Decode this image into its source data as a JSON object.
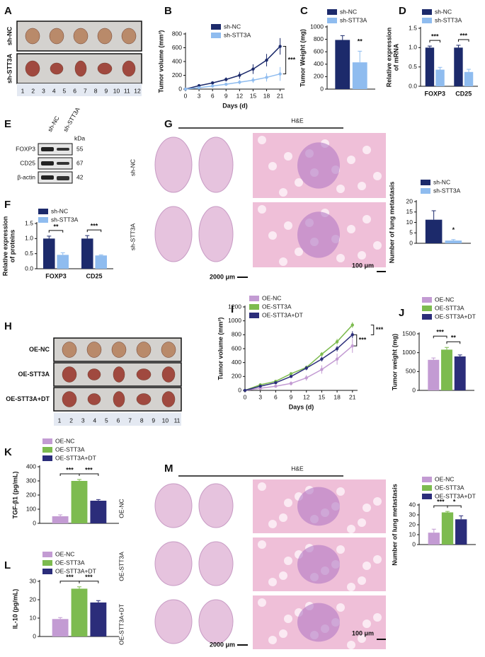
{
  "panel_letters": [
    "A",
    "B",
    "C",
    "D",
    "E",
    "F",
    "G",
    "H",
    "I",
    "J",
    "K",
    "L",
    "M"
  ],
  "panel_a": {
    "rows": [
      "sh-NC",
      "sh-STT3A"
    ],
    "ruler": [
      "1",
      "2",
      "3",
      "4",
      "5",
      "6",
      "7",
      "8",
      "9",
      "10",
      "11",
      "12"
    ]
  },
  "panel_e": {
    "columns": [
      "sh-NC",
      "sh-STT3A"
    ],
    "unit": "kDa",
    "bands": [
      {
        "name": "FOXP3",
        "kda": "55"
      },
      {
        "name": "CD25",
        "kda": "67"
      },
      {
        "name": "β-actin",
        "kda": "42"
      }
    ]
  },
  "panel_g": {
    "stain": "H&E",
    "rows": [
      "sh-NC",
      "sh-STT3A"
    ],
    "scale_bars": [
      "2000 μm",
      "100 μm"
    ]
  },
  "panel_h": {
    "rows": [
      "OE-NC",
      "OE-STT3A",
      "OE-STT3A+DT"
    ],
    "ruler": [
      "1",
      "2",
      "3",
      "4",
      "5",
      "6",
      "7",
      "8",
      "9",
      "10",
      "11"
    ]
  },
  "panel_m": {
    "stain": "H&E",
    "rows": [
      "OE-NC",
      "OE-STT3A",
      "OE-STT3A+DT"
    ],
    "scale_bars": [
      "2000 μm",
      "100 μm"
    ]
  },
  "chart_data": [
    {
      "type": "line",
      "y_label": "Tumor volume (mm³)",
      "x_label": "Days (d)",
      "x": [
        0,
        3,
        6,
        9,
        12,
        15,
        18,
        21
      ],
      "xlim": [
        0,
        22
      ],
      "xticks": [
        0,
        3,
        6,
        9,
        12,
        15,
        18,
        21
      ],
      "ylim": [
        0,
        800
      ],
      "yticks": [
        0,
        200,
        400,
        600,
        800
      ],
      "series": [
        {
          "name": "sh-NC",
          "color": "#1c2a6b",
          "values": [
            0,
            50,
            90,
            140,
            200,
            290,
            420,
            620
          ],
          "errors": [
            0,
            10,
            20,
            30,
            50,
            70,
            90,
            120
          ]
        },
        {
          "name": "sh-STT3A",
          "color": "#8fbcef",
          "values": [
            0,
            20,
            45,
            70,
            100,
            130,
            170,
            220
          ],
          "errors": [
            0,
            10,
            15,
            20,
            30,
            40,
            60,
            100
          ]
        }
      ],
      "annotations": [
        "***"
      ]
    },
    {
      "type": "bar",
      "y_label": "Tumor Weight (mg)",
      "ylim": [
        0,
        1000
      ],
      "yticks": [
        0,
        200,
        400,
        600,
        800,
        1000
      ],
      "series": [
        {
          "name": "sh-NC",
          "color": "#1c2a6b",
          "values": [
            790
          ],
          "errors": [
            70
          ]
        },
        {
          "name": "sh-STT3A",
          "color": "#8fbcef",
          "values": [
            430
          ],
          "errors": [
            180
          ]
        }
      ],
      "annotations": [
        "**"
      ]
    },
    {
      "type": "bar",
      "y_label": [
        "Relative expression",
        "of mRNA"
      ],
      "categories": [
        "FOXP3",
        "CD25"
      ],
      "ylim": [
        0,
        1.5
      ],
      "yticks": [
        {
          "value": 0,
          "label": "0.0"
        },
        0.5,
        {
          "value": 1,
          "label": "1.0"
        },
        1.5
      ],
      "series": [
        {
          "name": "sh-NC",
          "color": "#1c2a6b",
          "values": [
            1.0,
            1.0
          ],
          "errors": [
            0.04,
            0.06
          ]
        },
        {
          "name": "sh-STT3A",
          "color": "#8fbcef",
          "values": [
            0.43,
            0.37
          ],
          "errors": [
            0.06,
            0.07
          ]
        }
      ],
      "annotations": [
        "***",
        "***"
      ]
    },
    {
      "type": "bar",
      "y_label": [
        "Relative expression",
        "of proteins"
      ],
      "categories": [
        "FOXP3",
        "CD25"
      ],
      "ylim": [
        0,
        1.5
      ],
      "yticks": [
        {
          "value": 0,
          "label": "0.0"
        },
        0.5,
        {
          "value": 1,
          "label": "1.0"
        },
        1.5
      ],
      "series": [
        {
          "name": "sh-NC",
          "color": "#1c2a6b",
          "values": [
            1.0,
            1.0
          ],
          "errors": [
            0.08,
            0.1
          ]
        },
        {
          "name": "sh-STT3A",
          "color": "#8fbcef",
          "values": [
            0.46,
            0.44
          ],
          "errors": [
            0.07,
            0.02
          ]
        }
      ],
      "annotations": [
        "**",
        "***"
      ]
    },
    {
      "type": "bar",
      "y_label": "Number of lung metastasis",
      "ylim": [
        0,
        20
      ],
      "yticks": [
        0,
        5,
        10,
        15,
        20
      ],
      "series": [
        {
          "name": "sh-NC",
          "color": "#1c2a6b",
          "values": [
            11.3
          ],
          "errors": [
            4.3
          ]
        },
        {
          "name": "sh-STT3A",
          "color": "#8fbcef",
          "values": [
            1.3
          ],
          "errors": [
            0.5
          ]
        }
      ],
      "annotations": [
        "*"
      ]
    },
    {
      "type": "line",
      "y_label": "Tumor volume (mm³)",
      "x_label": "Days (d)",
      "x": [
        0,
        3,
        6,
        9,
        12,
        15,
        18,
        21
      ],
      "xlim": [
        0,
        22
      ],
      "xticks": [
        0,
        3,
        6,
        9,
        12,
        15,
        18,
        21
      ],
      "ylim": [
        0,
        1200
      ],
      "yticks": [
        0,
        200,
        400,
        600,
        800,
        1000,
        1200
      ],
      "series": [
        {
          "name": "OE-NC",
          "color": "#c39bd3",
          "values": [
            0,
            30,
            60,
            100,
            180,
            300,
            450,
            640
          ],
          "errors": [
            0,
            10,
            20,
            30,
            40,
            60,
            80,
            100
          ]
        },
        {
          "name": "OE-STT3A",
          "color": "#7dbb4f",
          "values": [
            0,
            80,
            130,
            240,
            330,
            520,
            700,
            940
          ],
          "errors": [
            0,
            10,
            15,
            20,
            25,
            30,
            40,
            40
          ]
        },
        {
          "name": "OE-STT3A+DT",
          "color": "#2b2d7a",
          "values": [
            0,
            60,
            110,
            200,
            320,
            450,
            600,
            800
          ],
          "errors": [
            0,
            10,
            15,
            20,
            30,
            35,
            40,
            50
          ]
        }
      ],
      "annotations": [
        "***",
        "***"
      ]
    },
    {
      "type": "bar",
      "y_label": "Tumor weight (mg)",
      "ylim": [
        0,
        1500
      ],
      "yticks": [
        0,
        500,
        1000,
        1500
      ],
      "series": [
        {
          "name": "OE-NC",
          "color": "#c39bd3",
          "values": [
            810
          ],
          "errors": [
            50
          ]
        },
        {
          "name": "OE-STT3A",
          "color": "#7dbb4f",
          "values": [
            1080
          ],
          "errors": [
            60
          ]
        },
        {
          "name": "OE-STT3A+DT",
          "color": "#2b2d7a",
          "values": [
            900
          ],
          "errors": [
            40
          ]
        }
      ],
      "annotations": [
        "***",
        "**"
      ]
    },
    {
      "type": "bar",
      "y_label": "TGF-β1 (pg/mL)",
      "ylim": [
        0,
        400
      ],
      "yticks": [
        0,
        100,
        200,
        300,
        400
      ],
      "series": [
        {
          "name": "OE-NC",
          "color": "#c39bd3",
          "values": [
            50
          ],
          "errors": [
            10
          ]
        },
        {
          "name": "OE-STT3A",
          "color": "#7dbb4f",
          "values": [
            300
          ],
          "errors": [
            10
          ]
        },
        {
          "name": "OE-STT3A+DT",
          "color": "#2b2d7a",
          "values": [
            160
          ],
          "errors": [
            8
          ]
        }
      ],
      "annotations": [
        "***",
        "***"
      ]
    },
    {
      "type": "bar",
      "y_label": "IL-10 (pg/mL)",
      "ylim": [
        0,
        30
      ],
      "yticks": [
        0,
        10,
        20,
        30
      ],
      "series": [
        {
          "name": "OE-NC",
          "color": "#c39bd3",
          "values": [
            9.5
          ],
          "errors": [
            0.8
          ]
        },
        {
          "name": "OE-STT3A",
          "color": "#7dbb4f",
          "values": [
            26
          ],
          "errors": [
            1
          ]
        },
        {
          "name": "OE-STT3A+DT",
          "color": "#2b2d7a",
          "values": [
            18.5
          ],
          "errors": [
            1
          ]
        }
      ],
      "annotations": [
        "***",
        "***"
      ]
    },
    {
      "type": "bar",
      "y_label": "Number of lung metastasis",
      "ylim": [
        0,
        40
      ],
      "yticks": [
        0,
        10,
        20,
        30,
        40
      ],
      "series": [
        {
          "name": "OE-NC",
          "color": "#c39bd3",
          "values": [
            12
          ],
          "errors": [
            3.5
          ]
        },
        {
          "name": "OE-STT3A",
          "color": "#7dbb4f",
          "values": [
            32.5
          ],
          "errors": [
            1
          ]
        },
        {
          "name": "OE-STT3A+DT",
          "color": "#2b2d7a",
          "values": [
            25.5
          ],
          "errors": [
            3.5
          ]
        }
      ],
      "annotations": [
        "***",
        "*"
      ]
    }
  ]
}
